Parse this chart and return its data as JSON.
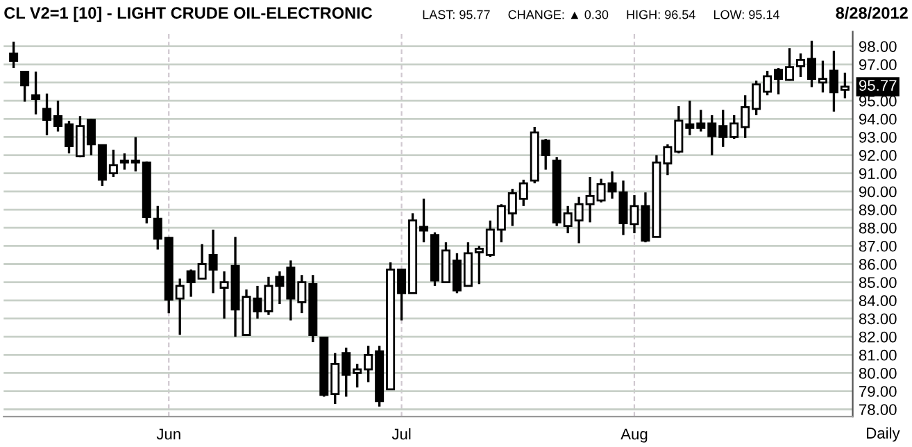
{
  "chart_data": {
    "type": "candlestick",
    "title": "CL V2=1 [10] - LIGHT CRUDE OIL-ELECTRONIC",
    "subtitle": "LAST: 95.77     CHANGE: ▲ 0.30     HIGH: 96.54     LOW: 95.14",
    "annotations": [
      "8/28/2012",
      "Daily",
      {
        "text": "95.77",
        "y": 95.77
      }
    ],
    "categories": [
      null,
      null,
      null,
      null,
      null,
      null,
      null,
      null,
      null,
      null,
      null,
      null,
      null,
      null,
      "Jun",
      null,
      null,
      null,
      null,
      null,
      null,
      null,
      null,
      null,
      null,
      null,
      null,
      null,
      null,
      null,
      null,
      null,
      null,
      null,
      null,
      "Jul",
      null,
      null,
      null,
      null,
      null,
      null,
      null,
      null,
      null,
      null,
      null,
      null,
      null,
      null,
      null,
      null,
      null,
      null,
      null,
      null,
      "Aug",
      null,
      null,
      null,
      null,
      null,
      null,
      null,
      null,
      null,
      null,
      null,
      null,
      null,
      null,
      null,
      null,
      null,
      null,
      null
    ],
    "ohlc": [
      [
        97.6,
        98.25,
        96.8,
        97.2
      ],
      [
        96.6,
        96.65,
        94.95,
        95.85
      ],
      [
        95.3,
        96.6,
        94.25,
        95.1
      ],
      [
        94.55,
        95.4,
        93.1,
        93.95
      ],
      [
        94.15,
        95.0,
        93.3,
        93.6
      ],
      [
        93.7,
        93.9,
        92.1,
        92.5
      ],
      [
        91.95,
        94.15,
        91.9,
        93.6
      ],
      [
        93.95,
        94.0,
        92.0,
        92.6
      ],
      [
        92.55,
        92.6,
        90.3,
        90.65
      ],
      [
        91.0,
        92.3,
        90.8,
        91.45
      ],
      [
        91.7,
        92.1,
        91.2,
        91.6
      ],
      [
        91.7,
        93.0,
        91.1,
        91.6
      ],
      [
        91.6,
        91.65,
        88.25,
        88.6
      ],
      [
        88.5,
        89.2,
        86.8,
        87.4
      ],
      [
        87.45,
        87.5,
        83.3,
        84.05
      ],
      [
        84.1,
        85.2,
        82.1,
        84.8
      ],
      [
        85.6,
        85.7,
        84.2,
        85.0
      ],
      [
        85.2,
        87.1,
        85.2,
        86.0
      ],
      [
        86.5,
        87.9,
        84.4,
        85.7
      ],
      [
        84.7,
        85.6,
        83.0,
        85.0
      ],
      [
        85.9,
        87.5,
        82.0,
        83.5
      ],
      [
        82.1,
        84.6,
        82.1,
        84.2
      ],
      [
        84.1,
        84.8,
        83.0,
        83.4
      ],
      [
        83.4,
        85.3,
        83.2,
        84.8
      ],
      [
        85.3,
        85.6,
        83.8,
        84.8
      ],
      [
        85.8,
        86.2,
        82.9,
        84.1
      ],
      [
        83.9,
        85.4,
        83.3,
        85.0
      ],
      [
        84.9,
        85.4,
        81.7,
        82.1
      ],
      [
        81.95,
        82.0,
        78.7,
        78.8
      ],
      [
        78.85,
        81.1,
        78.3,
        80.5
      ],
      [
        81.1,
        81.4,
        78.7,
        79.9
      ],
      [
        80.0,
        80.5,
        79.2,
        80.2
      ],
      [
        80.2,
        81.5,
        79.5,
        81.0
      ],
      [
        81.2,
        81.5,
        78.15,
        78.45
      ],
      [
        79.1,
        86.1,
        79.1,
        85.7
      ],
      [
        85.7,
        85.75,
        82.9,
        84.4
      ],
      [
        84.4,
        88.8,
        84.4,
        88.4
      ],
      [
        88.05,
        89.6,
        87.2,
        87.85
      ],
      [
        87.6,
        87.75,
        84.8,
        85.1
      ],
      [
        85.0,
        87.2,
        85.0,
        86.75
      ],
      [
        86.2,
        86.6,
        84.4,
        84.55
      ],
      [
        84.8,
        87.2,
        84.8,
        86.6
      ],
      [
        86.65,
        87.0,
        84.9,
        86.85
      ],
      [
        86.5,
        88.4,
        86.4,
        87.9
      ],
      [
        87.9,
        89.3,
        87.2,
        89.2
      ],
      [
        88.8,
        90.15,
        88.1,
        89.9
      ],
      [
        89.6,
        90.65,
        89.2,
        90.45
      ],
      [
        90.6,
        93.55,
        90.45,
        93.25
      ],
      [
        92.8,
        92.9,
        91.2,
        92.0
      ],
      [
        91.7,
        91.9,
        88.1,
        88.3
      ],
      [
        88.1,
        89.2,
        87.7,
        88.8
      ],
      [
        88.4,
        89.7,
        87.15,
        89.3
      ],
      [
        89.3,
        90.8,
        88.3,
        89.75
      ],
      [
        89.5,
        90.7,
        89.4,
        90.4
      ],
      [
        90.45,
        91.1,
        89.6,
        90.0
      ],
      [
        89.95,
        90.6,
        87.6,
        88.25
      ],
      [
        88.2,
        89.8,
        87.7,
        89.2
      ],
      [
        89.2,
        89.95,
        87.2,
        87.3
      ],
      [
        87.5,
        92.0,
        87.5,
        91.6
      ],
      [
        91.55,
        92.6,
        90.9,
        92.45
      ],
      [
        92.2,
        94.7,
        92.1,
        93.9
      ],
      [
        93.7,
        95.0,
        93.1,
        93.5
      ],
      [
        93.75,
        94.5,
        93.3,
        93.5
      ],
      [
        93.75,
        94.2,
        92.0,
        93.05
      ],
      [
        93.6,
        94.5,
        92.45,
        93.0
      ],
      [
        93.0,
        94.2,
        92.9,
        93.75
      ],
      [
        93.55,
        95.3,
        92.95,
        94.65
      ],
      [
        94.55,
        96.1,
        94.2,
        95.9
      ],
      [
        95.5,
        96.65,
        95.3,
        96.35
      ],
      [
        96.7,
        96.8,
        95.35,
        96.2
      ],
      [
        96.15,
        97.9,
        96.1,
        96.85
      ],
      [
        96.9,
        97.6,
        96.3,
        97.25
      ],
      [
        97.3,
        98.3,
        95.75,
        96.2
      ],
      [
        96.0,
        97.2,
        95.45,
        96.2
      ],
      [
        96.65,
        97.75,
        94.4,
        95.47
      ],
      [
        95.6,
        96.54,
        95.14,
        95.77
      ]
    ],
    "ylim": [
      77.6,
      98.8
    ],
    "yticks": [
      {
        "value": 78,
        "label": "78.00"
      },
      {
        "value": 79,
        "label": "79.00"
      },
      {
        "value": 80,
        "label": "80.00"
      },
      {
        "value": 81,
        "label": "81.00"
      },
      {
        "value": 82,
        "label": "82.00"
      },
      {
        "value": 83,
        "label": "83.00"
      },
      {
        "value": 84,
        "label": "84.00"
      },
      {
        "value": 85,
        "label": "85.00"
      },
      {
        "value": 86,
        "label": "86.00"
      },
      {
        "value": 87,
        "label": "87.00"
      },
      {
        "value": 88,
        "label": "88.00"
      },
      {
        "value": 89,
        "label": "89.00"
      },
      {
        "value": 90,
        "label": "90.00"
      },
      {
        "value": 91,
        "label": "91.00"
      },
      {
        "value": 92,
        "label": "92.00"
      },
      {
        "value": 93,
        "label": "93.00"
      },
      {
        "value": 94,
        "label": "94.00"
      },
      {
        "value": 95,
        "label": "95.00"
      },
      {
        "value": 96,
        "label": null
      },
      {
        "value": 97,
        "label": "97.00"
      },
      {
        "value": 98,
        "label": "98.00"
      }
    ],
    "grid": true,
    "legend": false
  }
}
